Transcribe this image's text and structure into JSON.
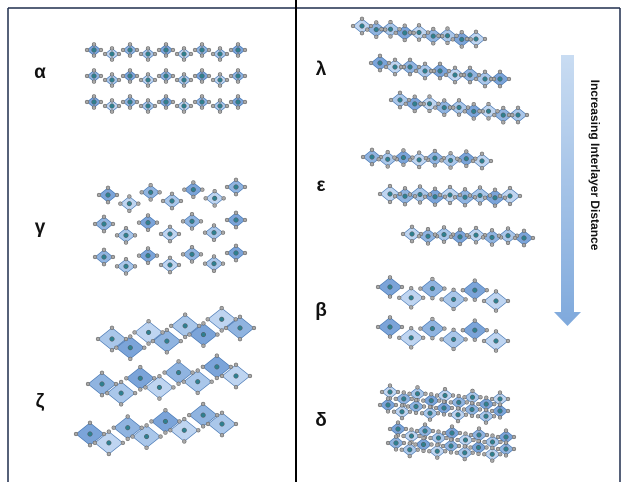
{
  "panels": {
    "left": {
      "labels": [
        "α",
        "γ",
        "ζ"
      ]
    },
    "right": {
      "labels": [
        "λ",
        "ε",
        "β",
        "δ"
      ]
    }
  },
  "arrow": {
    "label": "Increasing Interlayer Distance"
  }
}
